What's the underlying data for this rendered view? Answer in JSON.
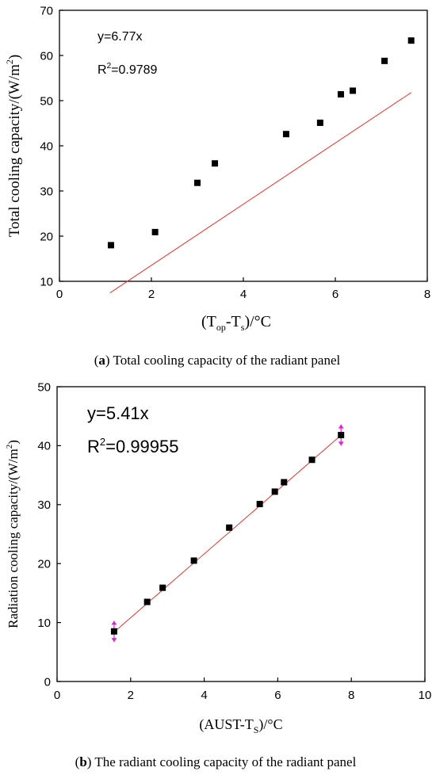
{
  "chart_data": [
    {
      "type": "scatter",
      "panel_caption_label": "a",
      "panel_caption_text": "Total cooling capacity of the radiant panel",
      "xlabel_prefix": "(T",
      "xlabel_sub1": "op",
      "xlabel_mid": "-T",
      "xlabel_sub2": "s",
      "xlabel_suffix": ")/°C",
      "ylabel": "Total cooling capacity/(W/m",
      "ylabel_sup": "2",
      "ylabel_end": ")",
      "xlim": [
        0,
        8
      ],
      "ylim": [
        10,
        70
      ],
      "xticks": [
        0,
        2,
        4,
        6,
        8
      ],
      "yticks": [
        10,
        20,
        30,
        40,
        50,
        60,
        70
      ],
      "equation": "y=6.77x",
      "r2_prefix": "R",
      "r2_sup": "2",
      "r2_value": "=0.9789",
      "fit_line": {
        "slope": 6.77,
        "x_range": [
          1.1,
          7.65
        ],
        "color": "#e8332e"
      },
      "marker_color": "#000000",
      "series": [
        {
          "x": [
            1.12,
            2.08,
            3.0,
            3.38,
            4.93,
            5.67,
            6.12,
            6.38,
            7.07,
            7.65
          ],
          "y": [
            18.0,
            20.9,
            31.8,
            36.1,
            42.6,
            45.1,
            51.4,
            52.2,
            58.8,
            63.3
          ]
        }
      ]
    },
    {
      "type": "scatter",
      "panel_caption_label": "b",
      "panel_caption_text": "The radiant cooling capacity of the radiant panel",
      "xlabel_prefix": "(AUST-T",
      "xlabel_sub": "S",
      "xlabel_suffix": ")/°C",
      "ylabel": "Radiation cooling capacity/(W/m",
      "ylabel_sup": "2",
      "ylabel_end": ")",
      "xlim": [
        0,
        10
      ],
      "ylim": [
        0,
        50
      ],
      "xticks": [
        0,
        2,
        4,
        6,
        8,
        10
      ],
      "yticks": [
        0,
        10,
        20,
        30,
        40,
        50
      ],
      "equation": "y=5.41x",
      "r2_prefix": "R",
      "r2_sup": "2",
      "r2_value": "=0.99955",
      "fit_line": {
        "slope": 5.41,
        "x_range": [
          1.55,
          7.75
        ],
        "color": "#e8332e"
      },
      "marker_color": "#000000",
      "errorbar_color": "#e020e0",
      "series": [
        {
          "x": [
            1.55,
            2.45,
            2.87,
            3.72,
            4.68,
            5.51,
            5.92,
            6.17,
            6.93,
            7.72
          ],
          "y": [
            8.5,
            13.5,
            15.9,
            20.5,
            26.1,
            30.1,
            32.2,
            33.8,
            37.6,
            41.8
          ],
          "errors": [
            1.8,
            0,
            0,
            0,
            0,
            0,
            0,
            0,
            0,
            1.8
          ]
        }
      ]
    }
  ]
}
